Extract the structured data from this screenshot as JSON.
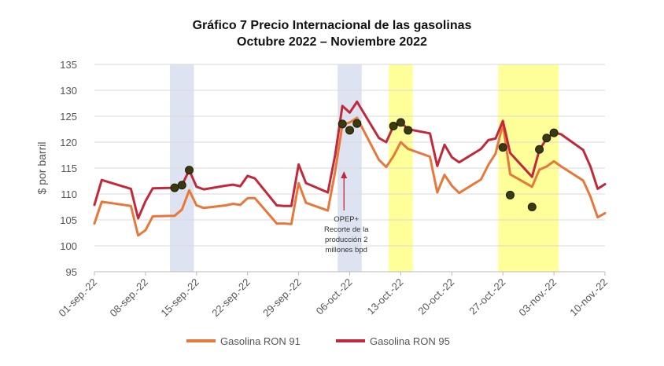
{
  "chart_data": {
    "type": "line",
    "title": "Gráfico 7 Precio Internacional de las gasolinas",
    "subtitle": "Octubre 2022 – Noviembre 2022",
    "ylabel": "$ por barril",
    "xlabel": "",
    "ylim": [
      95,
      135
    ],
    "yticks": [
      95,
      100,
      105,
      110,
      115,
      120,
      125,
      130,
      135
    ],
    "xlim": [
      "2022-09-01",
      "2022-11-10"
    ],
    "xticks": [
      "01-sep.-22",
      "08-sep.-22",
      "15-sep.-22",
      "22-sep.-22",
      "29-sep.-22",
      "06-oct.-22",
      "13-oct.-22",
      "20-oct.-22",
      "27-oct.-22",
      "03-nov.-22",
      "10-nov.-22"
    ],
    "grid": "horizontal",
    "legend_position": "bottom",
    "colors": {
      "ron91": "#E8773A",
      "ron95": "#C3283A",
      "blue_band": "#DDE3F0",
      "yellow_band": "#FFFF99",
      "dot": "#3a3a10"
    },
    "highlight_bands": [
      {
        "color": "blue",
        "start": "2022-09-12",
        "end": "2022-09-14"
      },
      {
        "color": "blue",
        "start": "2022-10-05",
        "end": "2022-10-07"
      },
      {
        "color": "yellow",
        "start": "2022-10-12",
        "end": "2022-10-14"
      },
      {
        "color": "yellow",
        "start": "2022-10-27",
        "end": "2022-10-31"
      },
      {
        "color": "yellow",
        "start": "2022-11-01",
        "end": "2022-11-03"
      }
    ],
    "annotation": {
      "lines": [
        "OPEP+",
        "Recorte de la",
        "producción 2",
        "millones bpd"
      ],
      "date": "2022-10-05"
    },
    "series": [
      {
        "name": "Gasolina RON 91",
        "points": [
          [
            "2022-09-01",
            104.3
          ],
          [
            "2022-09-02",
            108.5
          ],
          [
            "2022-09-06",
            107.7
          ],
          [
            "2022-09-07",
            102.0
          ],
          [
            "2022-09-08",
            103.0
          ],
          [
            "2022-09-09",
            105.7
          ],
          [
            "2022-09-12",
            105.8
          ],
          [
            "2022-09-13",
            107.0
          ],
          [
            "2022-09-14",
            110.7
          ],
          [
            "2022-09-15",
            107.8
          ],
          [
            "2022-09-16",
            107.3
          ],
          [
            "2022-09-19",
            107.8
          ],
          [
            "2022-09-20",
            108.1
          ],
          [
            "2022-09-21",
            107.9
          ],
          [
            "2022-09-22",
            109.2
          ],
          [
            "2022-09-23",
            109.2
          ],
          [
            "2022-09-26",
            104.3
          ],
          [
            "2022-09-27",
            104.3
          ],
          [
            "2022-09-28",
            104.2
          ],
          [
            "2022-09-29",
            112.1
          ],
          [
            "2022-09-30",
            108.3
          ],
          [
            "2022-10-03",
            106.8
          ],
          [
            "2022-10-04",
            114.3
          ],
          [
            "2022-10-05",
            123.4
          ],
          [
            "2022-10-06",
            123.8
          ],
          [
            "2022-10-07",
            124.7
          ],
          [
            "2022-10-10",
            116.6
          ],
          [
            "2022-10-11",
            115.2
          ],
          [
            "2022-10-12",
            117.3
          ],
          [
            "2022-10-13",
            120.0
          ],
          [
            "2022-10-14",
            118.7
          ],
          [
            "2022-10-17",
            117.2
          ],
          [
            "2022-10-18",
            110.3
          ],
          [
            "2022-10-19",
            113.7
          ],
          [
            "2022-10-20",
            111.6
          ],
          [
            "2022-10-21",
            110.2
          ],
          [
            "2022-10-24",
            112.8
          ],
          [
            "2022-10-25",
            115.6
          ],
          [
            "2022-10-26",
            117.8
          ],
          [
            "2022-10-27",
            123.5
          ],
          [
            "2022-10-28",
            113.8
          ],
          [
            "2022-10-31",
            111.4
          ],
          [
            "2022-11-01",
            114.7
          ],
          [
            "2022-11-02",
            115.3
          ],
          [
            "2022-11-03",
            116.3
          ],
          [
            "2022-11-04",
            115.3
          ],
          [
            "2022-11-07",
            112.6
          ],
          [
            "2022-11-08",
            109.5
          ],
          [
            "2022-11-09",
            105.5
          ],
          [
            "2022-11-10",
            106.3
          ]
        ]
      },
      {
        "name": "Gasolina RON 95",
        "points": [
          [
            "2022-09-01",
            107.9
          ],
          [
            "2022-09-02",
            112.7
          ],
          [
            "2022-09-06",
            111.0
          ],
          [
            "2022-09-07",
            105.3
          ],
          [
            "2022-09-08",
            108.6
          ],
          [
            "2022-09-09",
            111.1
          ],
          [
            "2022-09-12",
            111.2
          ],
          [
            "2022-09-13",
            111.7
          ],
          [
            "2022-09-14",
            114.6
          ],
          [
            "2022-09-15",
            111.4
          ],
          [
            "2022-09-16",
            110.9
          ],
          [
            "2022-09-19",
            111.6
          ],
          [
            "2022-09-20",
            111.8
          ],
          [
            "2022-09-21",
            111.5
          ],
          [
            "2022-09-22",
            113.5
          ],
          [
            "2022-09-23",
            113.0
          ],
          [
            "2022-09-26",
            107.8
          ],
          [
            "2022-09-27",
            107.7
          ],
          [
            "2022-09-28",
            107.7
          ],
          [
            "2022-09-29",
            115.7
          ],
          [
            "2022-09-30",
            112.1
          ],
          [
            "2022-10-03",
            110.3
          ],
          [
            "2022-10-04",
            117.5
          ],
          [
            "2022-10-05",
            127.0
          ],
          [
            "2022-10-06",
            125.7
          ],
          [
            "2022-10-07",
            127.8
          ],
          [
            "2022-10-10",
            120.8
          ],
          [
            "2022-10-11",
            120.0
          ],
          [
            "2022-10-12",
            123.1
          ],
          [
            "2022-10-13",
            123.8
          ],
          [
            "2022-10-14",
            122.5
          ],
          [
            "2022-10-17",
            121.7
          ],
          [
            "2022-10-18",
            115.4
          ],
          [
            "2022-10-19",
            119.5
          ],
          [
            "2022-10-20",
            117.1
          ],
          [
            "2022-10-21",
            116.1
          ],
          [
            "2022-10-24",
            118.7
          ],
          [
            "2022-10-25",
            120.4
          ],
          [
            "2022-10-26",
            120.7
          ],
          [
            "2022-10-27",
            124.1
          ],
          [
            "2022-10-28",
            117.9
          ],
          [
            "2022-10-31",
            113.3
          ],
          [
            "2022-11-01",
            118.5
          ],
          [
            "2022-11-02",
            120.7
          ],
          [
            "2022-11-03",
            121.9
          ],
          [
            "2022-11-04",
            121.5
          ],
          [
            "2022-11-07",
            118.5
          ],
          [
            "2022-11-08",
            115.3
          ],
          [
            "2022-11-09",
            111.0
          ],
          [
            "2022-11-10",
            111.9
          ]
        ]
      }
    ],
    "markers": [
      {
        "date": "2022-09-12",
        "value": 111.2
      },
      {
        "date": "2022-09-13",
        "value": 111.7
      },
      {
        "date": "2022-09-14",
        "value": 114.6
      },
      {
        "date": "2022-10-05",
        "value": 123.5
      },
      {
        "date": "2022-10-06",
        "value": 122.3
      },
      {
        "date": "2022-10-07",
        "value": 123.6
      },
      {
        "date": "2022-10-12",
        "value": 123.1
      },
      {
        "date": "2022-10-13",
        "value": 123.8
      },
      {
        "date": "2022-10-14",
        "value": 122.3
      },
      {
        "date": "2022-10-27",
        "value": 119.0
      },
      {
        "date": "2022-10-28",
        "value": 109.8
      },
      {
        "date": "2022-10-31",
        "value": 107.5
      },
      {
        "date": "2022-11-01",
        "value": 118.6
      },
      {
        "date": "2022-11-02",
        "value": 120.8
      },
      {
        "date": "2022-11-03",
        "value": 121.8
      }
    ]
  }
}
